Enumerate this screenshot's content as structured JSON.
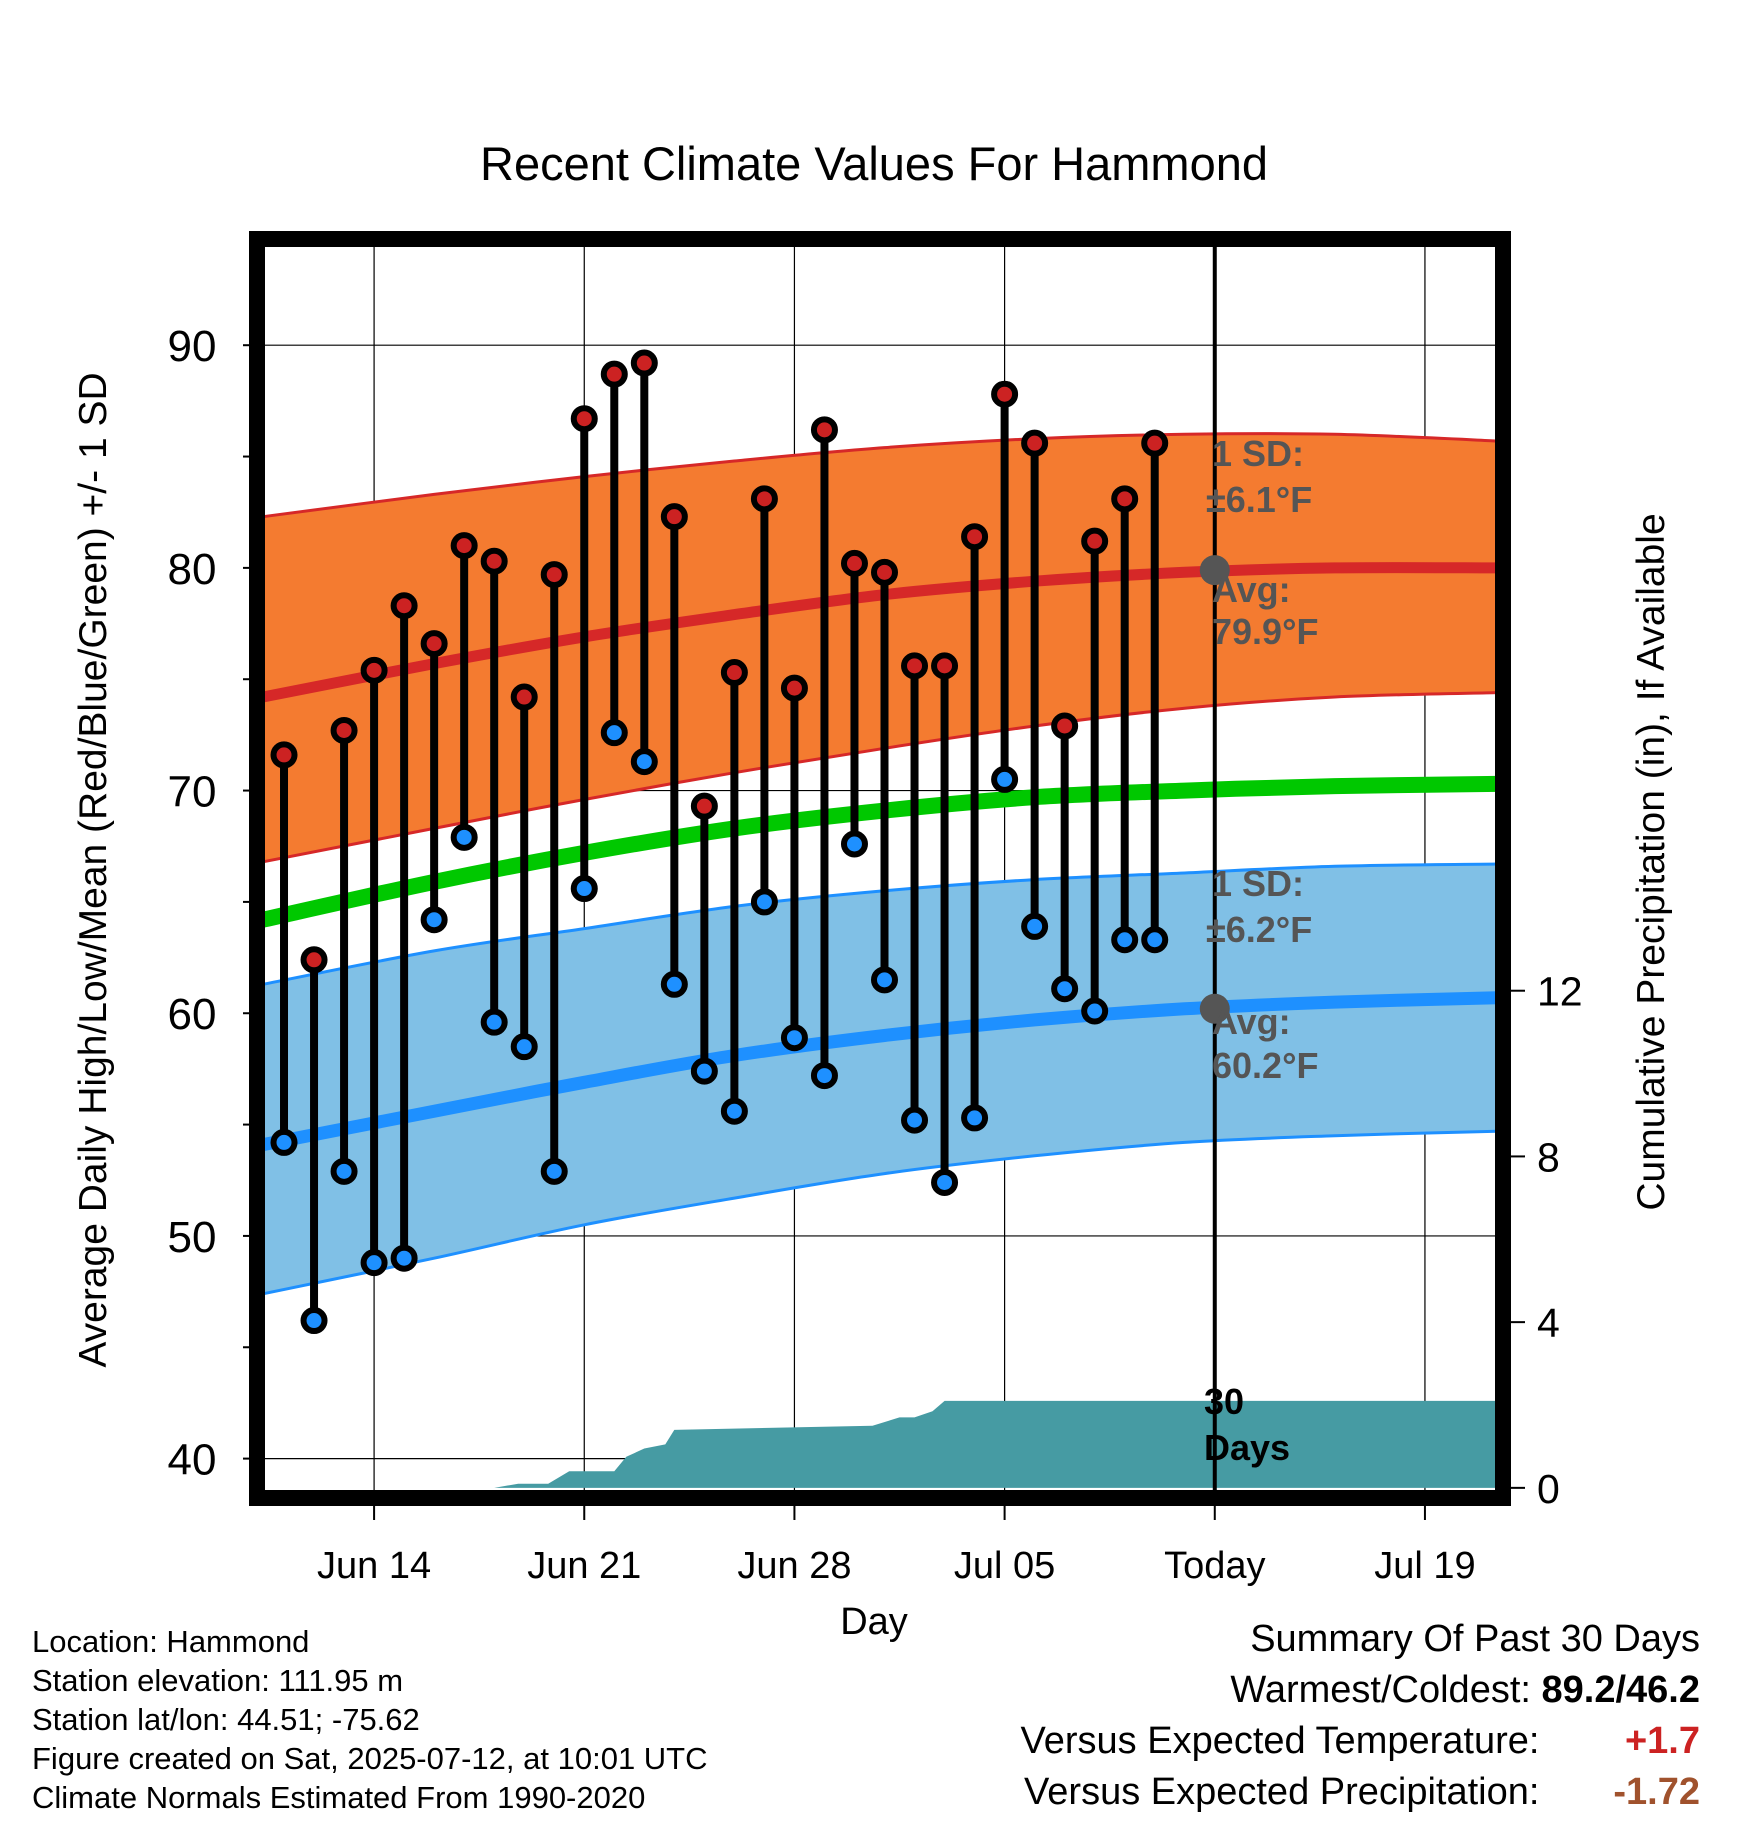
{
  "chart_data": {
    "type": "line",
    "title": "Recent Climate Values For Hammond",
    "xlabel": "Day",
    "ylabel_left": "Average Daily High/Low/Mean (Red/Blue/Green) +/- 1 SD",
    "ylabel_right": "Cumulative Precipitation (in), If Available",
    "x_ticks": [
      "Jun 14",
      "Jun 21",
      "Jun 28",
      "Jul 05",
      "Today",
      "Jul 19"
    ],
    "x_tick_days": [
      3,
      10,
      17,
      24,
      31,
      38
    ],
    "x_range_days": [
      -0.7,
      40.4
    ],
    "today_day": 31,
    "ylim": [
      38.5,
      94.5
    ],
    "y_ticks": [
      40,
      50,
      60,
      70,
      80,
      90
    ],
    "precip_ylim": [
      -0.1,
      30.0
    ],
    "precip_ticks": [
      0,
      4,
      8,
      12
    ],
    "observed": {
      "days": [
        0,
        1,
        2,
        3,
        4,
        5,
        6,
        7,
        8,
        9,
        10,
        11,
        12,
        13,
        14,
        15,
        16,
        17,
        18,
        19,
        20,
        21,
        22,
        23,
        24,
        25,
        26,
        27,
        28,
        29,
        30
      ],
      "high": [
        71.6,
        62.4,
        72.7,
        75.4,
        78.3,
        76.6,
        81.0,
        80.3,
        74.2,
        79.7,
        86.7,
        88.7,
        89.2,
        82.3,
        69.3,
        75.3,
        83.1,
        74.6,
        86.2,
        80.2,
        79.8,
        75.6,
        75.6,
        81.4,
        87.8,
        85.6,
        72.9,
        81.2,
        83.1,
        85.6,
        null
      ],
      "low": [
        54.2,
        46.2,
        52.9,
        48.8,
        49.0,
        64.2,
        67.9,
        59.6,
        58.5,
        52.9,
        65.6,
        72.6,
        71.3,
        61.3,
        57.4,
        55.6,
        65.0,
        58.9,
        57.2,
        67.6,
        61.5,
        55.2,
        52.4,
        55.3,
        70.5,
        63.9,
        61.1,
        60.1,
        63.3,
        63.3,
        null
      ]
    },
    "normals": {
      "days": [
        -0.7,
        5,
        10,
        15,
        20,
        25,
        30,
        35,
        40.4
      ],
      "high_avg": [
        74.2,
        75.7,
        76.9,
        77.9,
        78.8,
        79.4,
        79.8,
        80.0,
        80.0
      ],
      "high_sd_upper": [
        82.3,
        83.3,
        84.1,
        84.8,
        85.4,
        85.8,
        86.0,
        86.0,
        85.7
      ],
      "high_sd_lower": [
        66.8,
        68.3,
        69.6,
        70.8,
        71.9,
        72.9,
        73.7,
        74.2,
        74.4
      ],
      "mean_avg": [
        64.2,
        65.9,
        67.2,
        68.3,
        69.1,
        69.7,
        70.0,
        70.2,
        70.3
      ],
      "low_avg": [
        54.1,
        55.6,
        56.9,
        58.1,
        59.0,
        59.7,
        60.2,
        60.5,
        60.7
      ],
      "low_sd_upper": [
        61.3,
        62.8,
        63.8,
        64.8,
        65.5,
        66.0,
        66.3,
        66.6,
        66.7
      ],
      "low_sd_lower": [
        47.4,
        49.0,
        50.5,
        51.7,
        52.8,
        53.6,
        54.2,
        54.5,
        54.7
      ]
    },
    "precipitation": {
      "days": [
        -0.7,
        7,
        7.8,
        8.8,
        9.5,
        11,
        11.4,
        12,
        12.7,
        13,
        19.6,
        20.5,
        21,
        21.6,
        22,
        23,
        40.4
      ],
      "values": [
        0,
        0,
        0.1,
        0.1,
        0.4,
        0.4,
        0.75,
        0.95,
        1.05,
        1.4,
        1.5,
        1.7,
        1.7,
        1.85,
        2.1,
        2.1,
        2.1
      ]
    },
    "annotations": {
      "high_sd_label": "1 SD:",
      "high_sd_value": "±6.1°F",
      "high_avg_label": "Avg:",
      "high_avg_value": "79.9°F",
      "low_sd_label": "1 SD:",
      "low_sd_value": "±6.2°F",
      "low_avg_label": "Avg:",
      "low_avg_value": "60.2°F",
      "precip_label_line1": "30",
      "precip_label_line2": "Days"
    },
    "grid": true
  },
  "colors": {
    "high_band": "#f47b30",
    "high_line": "#d62828",
    "low_band": "#80c0e6",
    "low_line": "#1e90ff",
    "mean_line": "#00c800",
    "precip": "#469ba3",
    "high_point": "#cc2222",
    "low_point": "#1e90ff",
    "annotation_text": "#555555",
    "summary_warm": "#cc2222",
    "summary_dry": "#a0522d"
  },
  "info": {
    "location": "Location: Hammond",
    "elevation": "Station elevation: 111.95 m",
    "latlon": "Station lat/lon: 44.51; -75.62",
    "created": "Figure created on Sat, 2025-07-12, at 10:01 UTC",
    "normals": "Climate Normals Estimated From 1990-2020"
  },
  "summary": {
    "title": "Summary Of Past 30 Days",
    "warmest_coldest_label": "Warmest/Coldest:",
    "warmest_coldest_value": "89.2/46.2",
    "temp_label": "Versus Expected Temperature:",
    "temp_value": "+1.7",
    "precip_label": "Versus Expected Precipitation:",
    "precip_value": "-1.72"
  }
}
